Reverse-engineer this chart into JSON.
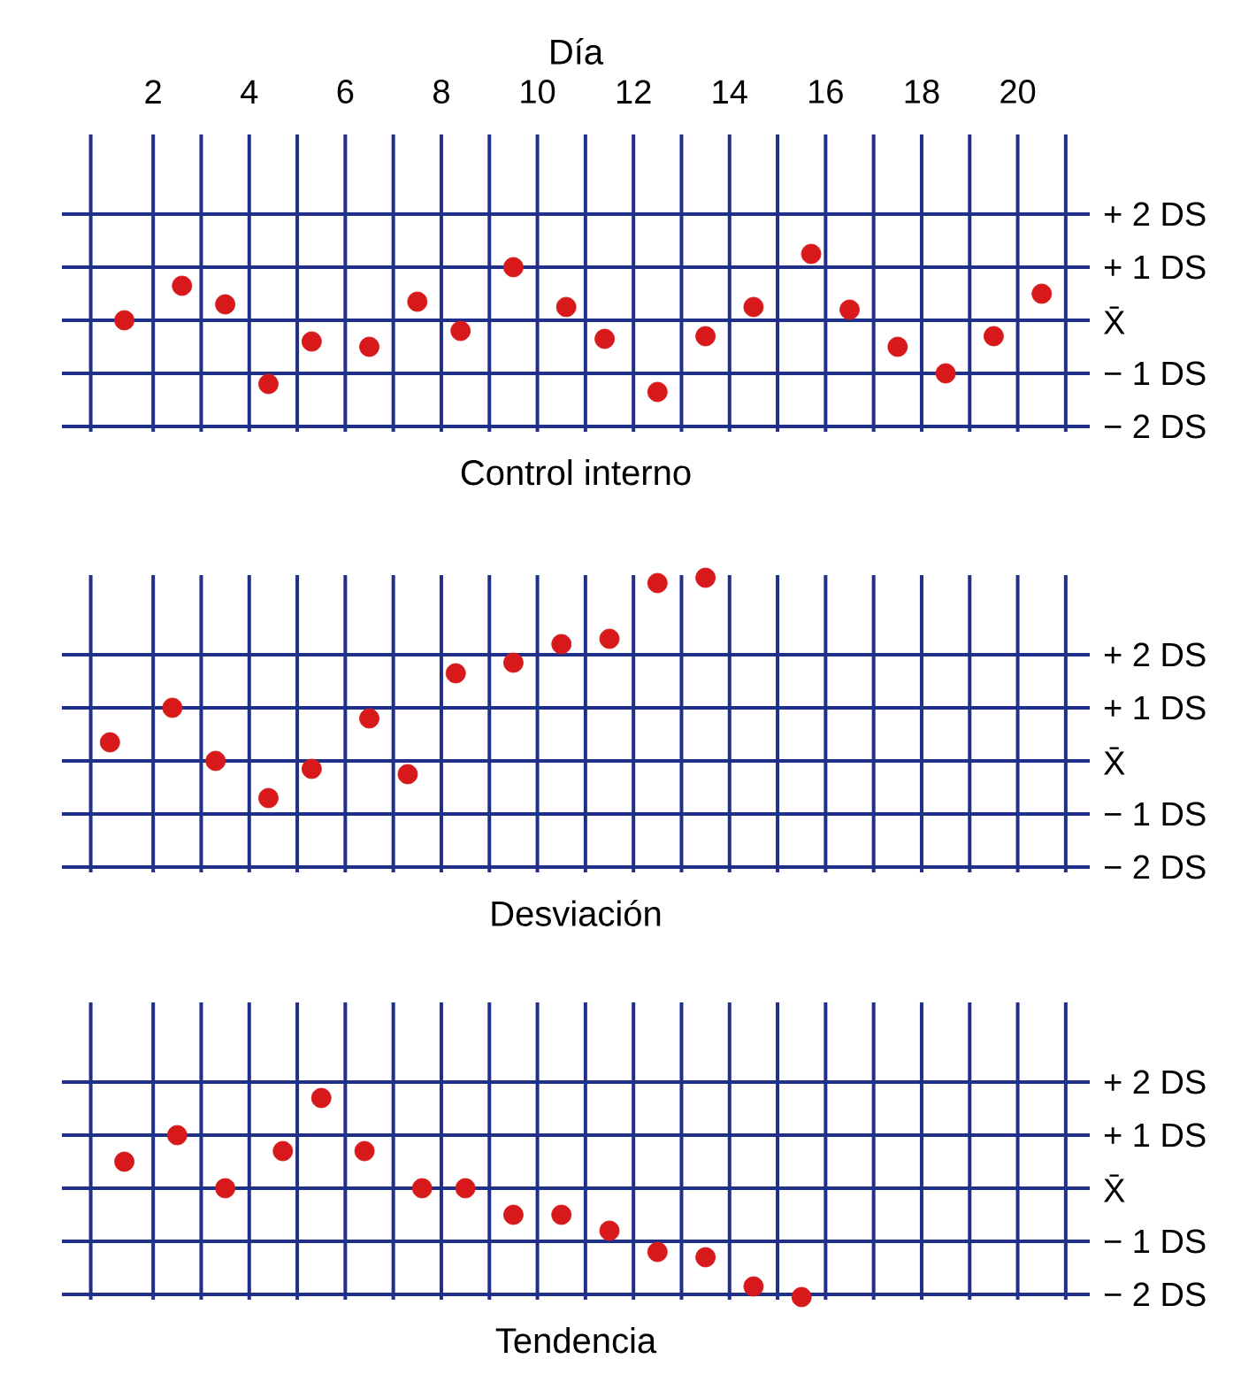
{
  "chart_data": [
    {
      "type": "scatter",
      "title": "Control interno",
      "xlabel": "Día",
      "color": "#d7191c",
      "marker": "circle",
      "grid": true,
      "x": [
        1.4,
        2.6,
        3.5,
        4.4,
        5.3,
        6.5,
        7.5,
        8.4,
        9.5,
        10.6,
        11.4,
        12.5,
        13.5,
        14.5,
        15.7,
        16.5,
        17.5,
        18.5,
        19.5,
        20.5
      ],
      "values": [
        0,
        0.65,
        0.3,
        -1.2,
        -0.4,
        -0.5,
        0.35,
        -0.2,
        1,
        0.25,
        -0.35,
        -1.35,
        -0.3,
        0.25,
        1.25,
        0.2,
        -0.5,
        -1,
        -0.3,
        0.5
      ],
      "xlim": [
        0.1,
        21.5
      ],
      "ylim": [
        -2.1,
        3.5
      ],
      "xticks": [
        {
          "value": 0.7,
          "label": null
        },
        2,
        {
          "value": 3,
          "label": null
        },
        4,
        {
          "value": 5,
          "label": null
        },
        6,
        {
          "value": 7,
          "label": null
        },
        8,
        {
          "value": 9,
          "label": null
        },
        10,
        {
          "value": 11,
          "label": null
        },
        12,
        {
          "value": 13,
          "label": null
        },
        14,
        {
          "value": 15,
          "label": null
        },
        16,
        {
          "value": 17,
          "label": null
        },
        18,
        {
          "value": 19,
          "label": null
        },
        20,
        {
          "value": 21,
          "label": null
        }
      ],
      "yticks": [
        {
          "value": -2,
          "label": "− 2 DS"
        },
        {
          "value": -1,
          "label": "− 1 DS"
        },
        {
          "value": 0,
          "label": "X̄"
        },
        {
          "value": 1,
          "label": "+ 1 DS"
        },
        {
          "value": 2,
          "label": "+ 2 DS"
        }
      ]
    },
    {
      "type": "scatter",
      "title": "Desviación",
      "color": "#d7191c",
      "marker": "circle",
      "grid": true,
      "tick_labels": "y",
      "x": [
        1.1,
        2.4,
        3.3,
        4.4,
        5.3,
        6.5,
        7.3,
        8.3,
        9.5,
        10.5,
        11.5,
        12.5,
        13.5
      ],
      "values": [
        0.35,
        1,
        0,
        -0.7,
        -0.15,
        0.8,
        -0.25,
        1.65,
        1.85,
        2.2,
        2.3,
        3.35,
        3.45
      ],
      "xlim": [
        0.1,
        21.5
      ],
      "ylim": [
        -2.1,
        3.5
      ],
      "xticks": [
        {
          "value": 0.7,
          "label": null
        },
        2,
        {
          "value": 3,
          "label": null
        },
        4,
        {
          "value": 5,
          "label": null
        },
        6,
        {
          "value": 7,
          "label": null
        },
        8,
        {
          "value": 9,
          "label": null
        },
        10,
        {
          "value": 11,
          "label": null
        },
        12,
        {
          "value": 13,
          "label": null
        },
        14,
        {
          "value": 15,
          "label": null
        },
        16,
        {
          "value": 17,
          "label": null
        },
        18,
        {
          "value": 19,
          "label": null
        },
        20,
        {
          "value": 21,
          "label": null
        }
      ],
      "yticks": [
        {
          "value": -2,
          "label": "− 2 DS"
        },
        {
          "value": -1,
          "label": "− 1 DS"
        },
        {
          "value": 0,
          "label": "X̄"
        },
        {
          "value": 1,
          "label": "+ 1 DS"
        },
        {
          "value": 2,
          "label": "+ 2 DS"
        }
      ]
    },
    {
      "type": "scatter",
      "title": "Tendencia",
      "color": "#d7191c",
      "marker": "circle",
      "grid": true,
      "tick_labels": "y",
      "x": [
        1.4,
        2.5,
        3.5,
        4.7,
        5.5,
        6.4,
        7.6,
        8.5,
        9.5,
        10.5,
        11.5,
        12.5,
        13.5,
        14.5,
        15.5
      ],
      "values": [
        0.5,
        1,
        0,
        0.7,
        1.7,
        0.7,
        0,
        0,
        -0.5,
        -0.5,
        -0.8,
        -1.2,
        -1.3,
        -1.85,
        -2.05
      ],
      "xlim": [
        0.1,
        21.5
      ],
      "ylim": [
        -2.1,
        3.5
      ],
      "xticks": [
        {
          "value": 0.7,
          "label": null
        },
        2,
        {
          "value": 3,
          "label": null
        },
        4,
        {
          "value": 5,
          "label": null
        },
        6,
        {
          "value": 7,
          "label": null
        },
        8,
        {
          "value": 9,
          "label": null
        },
        10,
        {
          "value": 11,
          "label": null
        },
        12,
        {
          "value": 13,
          "label": null
        },
        14,
        {
          "value": 15,
          "label": null
        },
        16,
        {
          "value": 17,
          "label": null
        },
        18,
        {
          "value": 19,
          "label": null
        },
        20,
        {
          "value": 21,
          "label": null
        }
      ],
      "yticks": [
        {
          "value": -2,
          "label": "− 2 DS"
        },
        {
          "value": -1,
          "label": "− 1 DS"
        },
        {
          "value": 0,
          "label": "X̄"
        },
        {
          "value": 1,
          "label": "+ 1 DS"
        },
        {
          "value": 2,
          "label": "+ 2 DS"
        }
      ]
    }
  ]
}
